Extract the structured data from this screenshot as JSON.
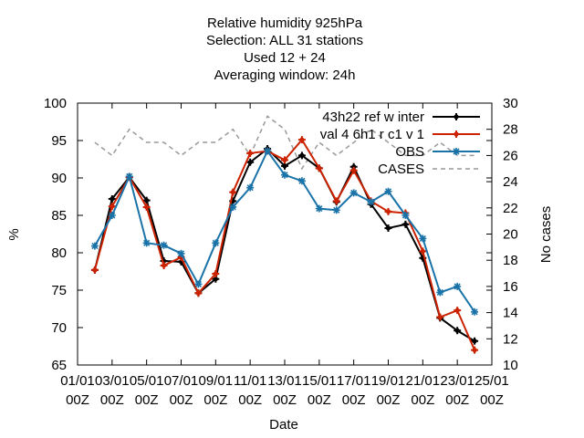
{
  "chart_data": {
    "type": "line",
    "title_lines": [
      "Relative humidity 925hPa",
      "Selection: ALL      31 stations",
      "Used  12  + 24",
      "Averaging window: 24h"
    ],
    "xlabel": "Date",
    "ylabel": "%",
    "y2label": "No cases",
    "ylim": [
      65,
      100
    ],
    "y2lim": [
      10,
      30
    ],
    "yticks": [
      "65",
      "70",
      "75",
      "80",
      "85",
      "90",
      "95",
      "100"
    ],
    "y2ticks": [
      "10",
      "12",
      "14",
      "16",
      "18",
      "20",
      "22",
      "24",
      "26",
      "28",
      "30"
    ],
    "xticks": [
      [
        "01/01",
        "00Z"
      ],
      [
        "03/01",
        "00Z"
      ],
      [
        "05/01",
        "00Z"
      ],
      [
        "07/01",
        "00Z"
      ],
      [
        "09/01",
        "00Z"
      ],
      [
        "11/01",
        "00Z"
      ],
      [
        "13/01",
        "00Z"
      ],
      [
        "15/01",
        "00Z"
      ],
      [
        "17/01",
        "00Z"
      ],
      [
        "19/01",
        "00Z"
      ],
      [
        "21/01",
        "00Z"
      ],
      [
        "23/01",
        "00Z"
      ],
      [
        "25/01",
        "00Z"
      ]
    ],
    "x_days": [
      2,
      3,
      4,
      5,
      6,
      7,
      8,
      9,
      10,
      11,
      12,
      13,
      14,
      15,
      16,
      17,
      18,
      19,
      20,
      21,
      22,
      23,
      24
    ],
    "legend_position": "top-right",
    "grid": false,
    "series": [
      {
        "name": "43h22 ref w inter",
        "color": "#000000",
        "axis": "y",
        "marker": "plus",
        "values": [
          77.7,
          87.2,
          90.1,
          87.0,
          78.9,
          78.8,
          74.6,
          76.5,
          86.9,
          92.1,
          93.9,
          91.6,
          93.0,
          91.3,
          86.8,
          91.5,
          86.5,
          83.3,
          83.8,
          79.3,
          71.3,
          69.6,
          68.2
        ]
      },
      {
        "name": "val 4 6h1 r c1 v 1",
        "color": "#cc2200",
        "axis": "y",
        "marker": "plus",
        "values": [
          77.7,
          86.2,
          90.1,
          86.1,
          78.3,
          79.4,
          74.6,
          77.2,
          88.1,
          93.3,
          93.6,
          92.4,
          95.1,
          91.3,
          86.9,
          91.0,
          86.9,
          85.5,
          85.3,
          80.2,
          71.4,
          72.3,
          67.0
        ]
      },
      {
        "name": "OBS",
        "color": "#1a73a8",
        "axis": "y",
        "marker": "star",
        "values": [
          80.9,
          85.0,
          90.2,
          81.3,
          81.0,
          79.9,
          75.8,
          81.3,
          86.1,
          88.7,
          93.6,
          90.4,
          89.6,
          85.9,
          85.7,
          88.0,
          86.8,
          88.2,
          85.0,
          81.9,
          74.7,
          75.5,
          72.1
        ]
      },
      {
        "name": "CASES",
        "color": "#999999",
        "axis": "y2",
        "dashed": true,
        "values": [
          27,
          26,
          28,
          27,
          27,
          26,
          27,
          27,
          28,
          26,
          29,
          28,
          25,
          27,
          26,
          27,
          28,
          27,
          26,
          26,
          27,
          26,
          26
        ]
      }
    ]
  }
}
